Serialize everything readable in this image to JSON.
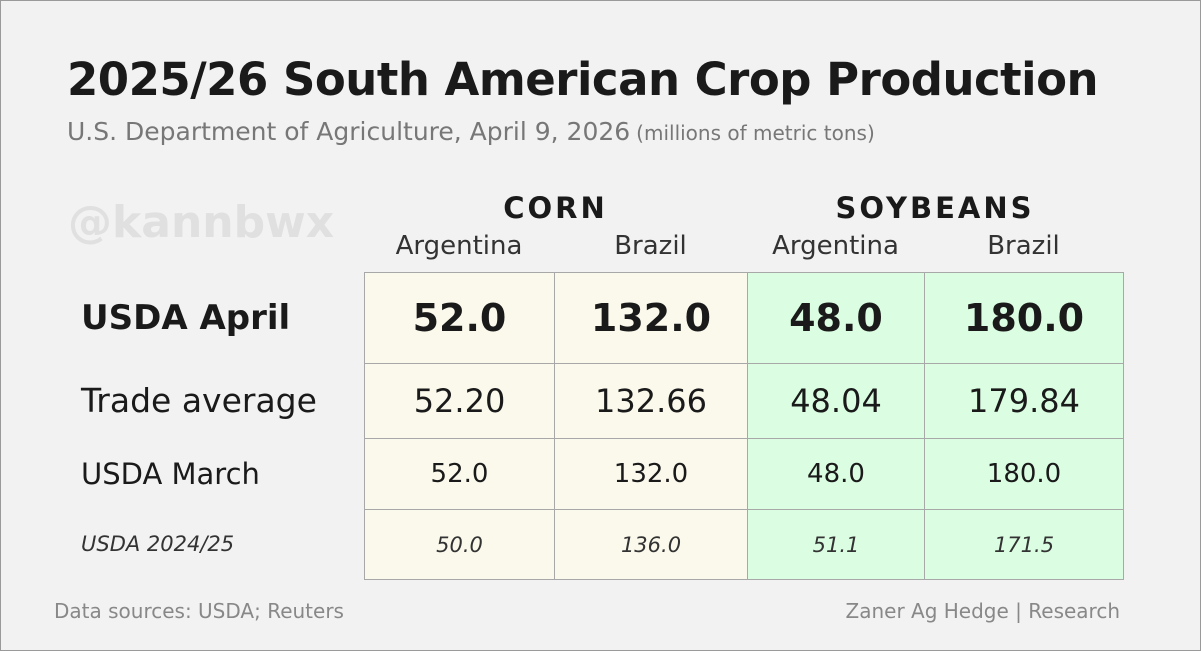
{
  "title": "2025/26 South American Crop Production",
  "subtitle": "U.S. Department of Agriculture, April 9, 2026",
  "units": "(millions of metric tons)",
  "watermark": "@kannbwx",
  "groups": {
    "corn": "CORN",
    "soybeans": "SOYBEANS"
  },
  "columns": [
    "Argentina",
    "Brazil",
    "Argentina",
    "Brazil"
  ],
  "rows": [
    {
      "label": "USDA April",
      "values": [
        "52.0",
        "132.0",
        "48.0",
        "180.0"
      ]
    },
    {
      "label": "Trade average",
      "values": [
        "52.20",
        "132.66",
        "48.04",
        "179.84"
      ]
    },
    {
      "label": "USDA March",
      "values": [
        "52.0",
        "132.0",
        "48.0",
        "180.0"
      ]
    },
    {
      "label": "USDA 2024/25",
      "values": [
        "50.0",
        "136.0",
        "51.1",
        "171.5"
      ]
    }
  ],
  "footer": {
    "sources": "Data sources: USDA; Reuters",
    "credit": "Zaner Ag Hedge | Research"
  },
  "colors": {
    "corn": "#fbf9ec",
    "soybeans": "#dbfde2"
  }
}
